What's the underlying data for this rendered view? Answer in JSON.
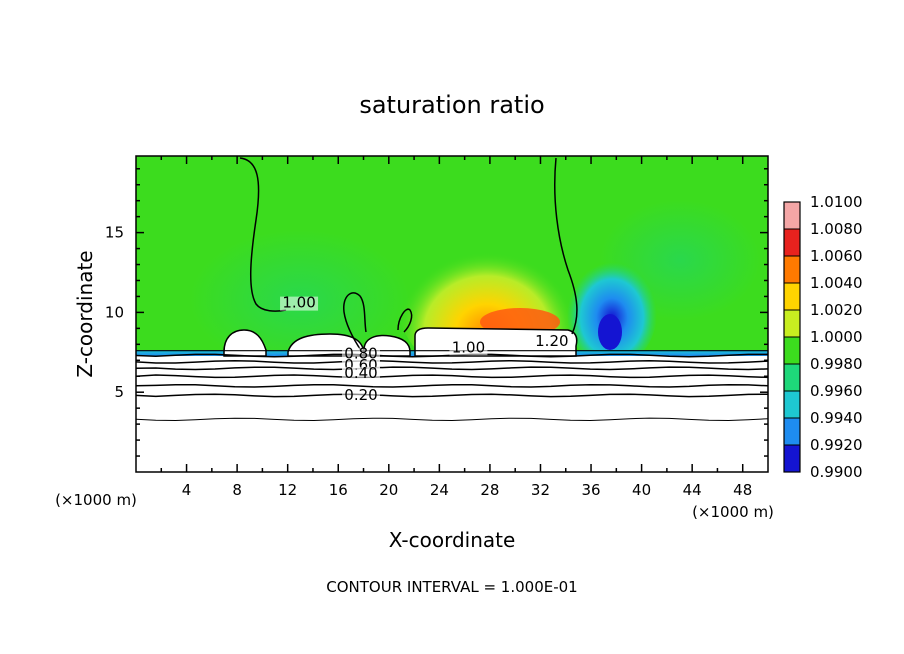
{
  "chart_data": {
    "type": "heatmap",
    "title": "saturation ratio",
    "xlabel": "X-coordinate",
    "ylabel": "Z-coordinate",
    "x_unit_label": "(×1000 m)",
    "y_unit_label": "(×1000 m)",
    "footer": "CONTOUR INTERVAL = 1.000E-01",
    "xlim": [
      0,
      50
    ],
    "ylim": [
      0,
      19.8
    ],
    "x_ticks": [
      "4",
      "8",
      "12",
      "16",
      "20",
      "24",
      "28",
      "32",
      "36",
      "40",
      "44",
      "48"
    ],
    "y_ticks": [
      "5",
      "10",
      "15"
    ],
    "colorbar": {
      "levels": [
        "1.0100",
        "1.0080",
        "1.0060",
        "1.0040",
        "1.0020",
        "1.0000",
        "0.9980",
        "0.9960",
        "0.9940",
        "0.9920",
        "0.9900"
      ],
      "colors": [
        "#f4a6a6",
        "#e8221e",
        "#ff7a00",
        "#ffd400",
        "#c8ee20",
        "#3cdc1e",
        "#1ed87a",
        "#1ec8d2",
        "#1e8cf0",
        "#1414d2",
        "#4c1090"
      ]
    },
    "contour_labels": [
      {
        "text": "1.00",
        "x": 12.9,
        "y": 10.3
      },
      {
        "text": "1.00",
        "x": 26.3,
        "y": 7.5
      },
      {
        "text": "1.20",
        "x": 32.9,
        "y": 7.9
      },
      {
        "text": "0.80",
        "x": 17.8,
        "y": 7.1
      },
      {
        "text": "0.60",
        "x": 17.8,
        "y": 6.4
      },
      {
        "text": "0.40",
        "x": 17.8,
        "y": 5.9
      },
      {
        "text": "0.20",
        "x": 17.8,
        "y": 4.5
      }
    ],
    "contour_levels_z": [
      3.3,
      4.8,
      5.4,
      6.0,
      6.5,
      6.9,
      7.3
    ],
    "cloud_top_z": 7.6
  }
}
